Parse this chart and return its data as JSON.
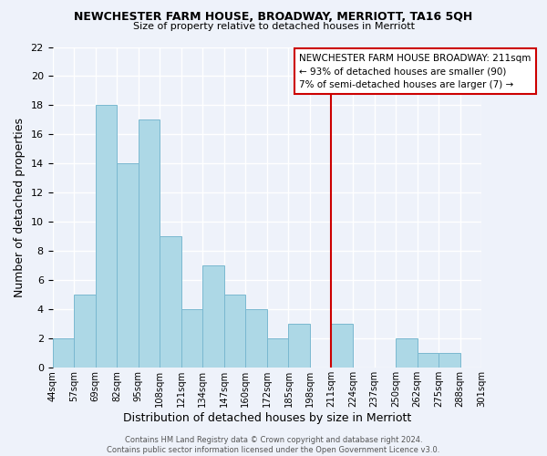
{
  "title": "NEWCHESTER FARM HOUSE, BROADWAY, MERRIOTT, TA16 5QH",
  "subtitle": "Size of property relative to detached houses in Merriott",
  "xlabel": "Distribution of detached houses by size in Merriott",
  "ylabel": "Number of detached properties",
  "bin_edges": [
    "44sqm",
    "57sqm",
    "69sqm",
    "82sqm",
    "95sqm",
    "108sqm",
    "121sqm",
    "134sqm",
    "147sqm",
    "160sqm",
    "172sqm",
    "185sqm",
    "198sqm",
    "211sqm",
    "224sqm",
    "237sqm",
    "250sqm",
    "262sqm",
    "275sqm",
    "288sqm",
    "301sqm"
  ],
  "bar_heights": [
    2,
    5,
    18,
    14,
    17,
    9,
    4,
    7,
    5,
    4,
    2,
    3,
    0,
    3,
    0,
    0,
    2,
    1,
    1,
    0
  ],
  "bar_color": "#add8e6",
  "bar_edge_color": "#7ab8d0",
  "vline_color": "#cc0000",
  "vline_bin_index": 13,
  "annotation_title": "NEWCHESTER FARM HOUSE BROADWAY: 211sqm",
  "annotation_line1": "← 93% of detached houses are smaller (90)",
  "annotation_line2": "7% of semi-detached houses are larger (7) →",
  "annotation_box_color": "#ffffff",
  "annotation_box_edge": "#cc0000",
  "ylim": [
    0,
    22
  ],
  "yticks": [
    0,
    2,
    4,
    6,
    8,
    10,
    12,
    14,
    16,
    18,
    20,
    22
  ],
  "footer1": "Contains HM Land Registry data © Crown copyright and database right 2024.",
  "footer2": "Contains public sector information licensed under the Open Government Licence v3.0.",
  "background_color": "#eef2fa"
}
